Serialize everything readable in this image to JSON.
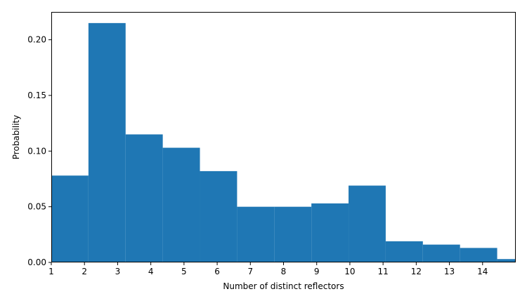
{
  "chart_data": {
    "type": "histogram",
    "xlabel": "Number of distinct reflectors",
    "ylabel": "Probability",
    "xlim": [
      1,
      15
    ],
    "ylim": [
      0,
      0.225
    ],
    "bar_color": "#1f77b4",
    "grid": false,
    "bins": [
      {
        "x0": 1.0,
        "x1": 2.12,
        "value": 0.078
      },
      {
        "x0": 2.12,
        "x1": 3.24,
        "value": 0.215
      },
      {
        "x0": 3.24,
        "x1": 4.36,
        "value": 0.115
      },
      {
        "x0": 4.36,
        "x1": 5.48,
        "value": 0.103
      },
      {
        "x0": 5.48,
        "x1": 6.6,
        "value": 0.082
      },
      {
        "x0": 6.6,
        "x1": 7.72,
        "value": 0.05
      },
      {
        "x0": 7.72,
        "x1": 8.84,
        "value": 0.05
      },
      {
        "x0": 8.84,
        "x1": 9.96,
        "value": 0.053
      },
      {
        "x0": 9.96,
        "x1": 11.08,
        "value": 0.069
      },
      {
        "x0": 11.08,
        "x1": 12.2,
        "value": 0.019
      },
      {
        "x0": 12.2,
        "x1": 13.32,
        "value": 0.016
      },
      {
        "x0": 13.32,
        "x1": 14.44,
        "value": 0.013
      },
      {
        "x0": 14.44,
        "x1": 15.0,
        "value": 0.003
      }
    ],
    "x_ticks": [
      {
        "value": 1,
        "label": "1"
      },
      {
        "value": 2,
        "label": "2"
      },
      {
        "value": 3,
        "label": "3"
      },
      {
        "value": 4,
        "label": "4"
      },
      {
        "value": 5,
        "label": "5"
      },
      {
        "value": 6,
        "label": "6"
      },
      {
        "value": 7,
        "label": "7"
      },
      {
        "value": 8,
        "label": "8"
      },
      {
        "value": 9,
        "label": "9"
      },
      {
        "value": 10,
        "label": "10"
      },
      {
        "value": 11,
        "label": "11"
      },
      {
        "value": 12,
        "label": "12"
      },
      {
        "value": 13,
        "label": "13"
      },
      {
        "value": 14,
        "label": "14"
      }
    ],
    "y_ticks": [
      {
        "value": 0.0,
        "label": "0.00"
      },
      {
        "value": 0.05,
        "label": "0.05"
      },
      {
        "value": 0.1,
        "label": "0.10"
      },
      {
        "value": 0.15,
        "label": "0.15"
      },
      {
        "value": 0.2,
        "label": "0.20"
      }
    ]
  }
}
